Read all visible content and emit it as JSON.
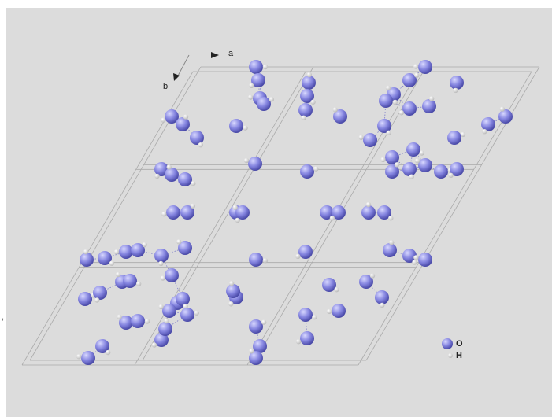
{
  "axes": {
    "a": "a",
    "b": "b"
  },
  "legend": {
    "oxygen": "O",
    "hydrogen": "H"
  },
  "margin_text": ","
}
